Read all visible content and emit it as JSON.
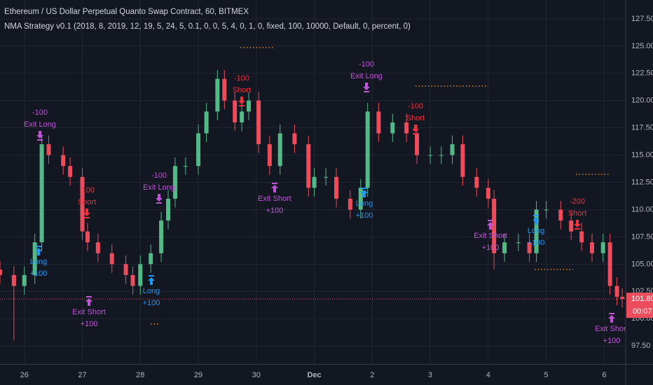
{
  "header": {
    "symbol": "Ethereum / US Dollar Perpetual Quanto Swap Contract, 60, BITMEX",
    "strategy": "NMA Strategy v0.1 (2018, 8, 2019, 12, 19, 5, 24, 5, 0.1, 0, 0, 5, 4, 0, 1, 0, fixed, 100, 10000, Default, 0, percent, 0)"
  },
  "chart_data": {
    "type": "candlestick",
    "up_color": "#53b987",
    "down_color": "#eb4d5c",
    "grid": true,
    "x": [
      25.58,
      25.82,
      26.0,
      26.18,
      26.3,
      26.42,
      26.67,
      26.79,
      27.0,
      27.09,
      27.27,
      27.51,
      27.75,
      27.87,
      28.0,
      28.18,
      28.36,
      28.48,
      28.6,
      28.78,
      29.0,
      29.14,
      29.33,
      29.45,
      29.63,
      29.75,
      29.87,
      30.04,
      30.23,
      30.41,
      30.66,
      30.9,
      31.0,
      31.2,
      31.38,
      31.62,
      31.8,
      31.92,
      32.11,
      32.35,
      32.59,
      32.77,
      33.0,
      33.19,
      33.38,
      33.56,
      33.8,
      34.0,
      34.1,
      34.28,
      34.52,
      34.71,
      34.83,
      35.0,
      35.25,
      35.43,
      35.61,
      35.79,
      35.98,
      36.1,
      36.22,
      36.31
    ],
    "open": [
      104.5,
      104,
      103,
      104,
      107,
      116,
      115,
      114,
      113,
      108,
      107,
      106,
      105,
      104,
      103,
      105,
      106,
      109,
      111,
      114,
      114,
      117,
      119,
      122,
      120,
      118,
      119,
      120,
      116,
      114,
      117,
      116,
      112,
      113,
      113,
      111,
      110,
      112,
      119,
      117,
      118,
      117,
      115,
      115,
      115,
      116,
      113,
      112,
      111,
      106,
      107,
      107,
      106,
      110,
      110,
      109,
      108,
      107,
      106,
      107,
      103,
      102
    ],
    "high": [
      105.3,
      104.8,
      104.8,
      107.8,
      116.8,
      116.8,
      115.8,
      114.8,
      113.8,
      108.8,
      107.8,
      106.8,
      105.8,
      104.8,
      105.8,
      106.8,
      109.8,
      111.8,
      114.8,
      114.8,
      117.8,
      119.8,
      122.8,
      122.8,
      120.8,
      119.8,
      120.8,
      120.8,
      116.8,
      117.8,
      117.8,
      116.8,
      113.8,
      113.8,
      113.8,
      111.8,
      112.8,
      119.8,
      119.8,
      118.8,
      118.8,
      117.8,
      115.8,
      115.8,
      116.8,
      116.8,
      113.8,
      112.8,
      111.8,
      107.8,
      107.8,
      107.8,
      110.8,
      110.8,
      110.8,
      109.8,
      108.8,
      107.8,
      107.8,
      107.8,
      103.8,
      102.8
    ],
    "low": [
      103.2,
      98,
      102.2,
      103.2,
      106.2,
      114.2,
      113.2,
      112.2,
      107.2,
      106.2,
      105.2,
      104.2,
      103.2,
      102.2,
      102.2,
      104.2,
      105.2,
      108.2,
      110.2,
      113.2,
      113.2,
      116.2,
      118.2,
      119.2,
      117.2,
      117.2,
      118.2,
      115.2,
      113.2,
      113.2,
      115.2,
      111.2,
      111.2,
      112.2,
      110.2,
      109.2,
      109.2,
      111.2,
      116.2,
      116.2,
      116.2,
      114.2,
      114.2,
      114.2,
      114.2,
      112.2,
      111.2,
      110.2,
      104.5,
      105.2,
      106.2,
      105.2,
      105.2,
      109.2,
      108.2,
      107.2,
      106.2,
      105.2,
      105.2,
      102.2,
      101.2,
      101.0
    ],
    "close": [
      104,
      103,
      104,
      107,
      116,
      115,
      114,
      113,
      108,
      107,
      106,
      105,
      104,
      103,
      105,
      106,
      109,
      111,
      114,
      114,
      117,
      119,
      122,
      120,
      118,
      119,
      120,
      116,
      114,
      117,
      116,
      112,
      113,
      113,
      111,
      110,
      112,
      119,
      117,
      118,
      117,
      115,
      115,
      115,
      116,
      113,
      112,
      111,
      106,
      107,
      107,
      106,
      110,
      110,
      109,
      108,
      107,
      106,
      107,
      103,
      102,
      101.8
    ],
    "xlim": [
      25.58,
      36.37
    ],
    "xticks": [
      26,
      27,
      28,
      29,
      30,
      {
        "value": 31,
        "label": "Dec"
      },
      {
        "value": 32,
        "label": "2"
      },
      {
        "value": 33,
        "label": "3"
      },
      {
        "value": 34,
        "label": "4"
      },
      {
        "value": 35,
        "label": "5"
      },
      {
        "value": 36,
        "label": "6"
      }
    ],
    "ylim": [
      95.84,
      129.23
    ],
    "yticks": [
      {
        "value": 97.5,
        "label": "97.50"
      },
      {
        "value": 100,
        "label": "100.00"
      },
      {
        "value": 102.5,
        "label": "102.50"
      },
      {
        "value": 105,
        "label": "105.00"
      },
      {
        "value": 107.5,
        "label": "107.50"
      },
      {
        "value": 110,
        "label": "110.00"
      },
      {
        "value": 112.5,
        "label": "112.50"
      },
      {
        "value": 115,
        "label": "115.00"
      },
      {
        "value": 117.5,
        "label": "117.50"
      },
      {
        "value": 120,
        "label": "120.00"
      },
      {
        "value": 122.5,
        "label": "122.50"
      },
      {
        "value": 125,
        "label": "125.00"
      },
      {
        "value": 127.5,
        "label": "127.50"
      }
    ],
    "last_price": {
      "value": 101.8,
      "label": "101.80"
    },
    "countdown": "00:07",
    "signals": [
      {
        "lines": [
          "-100",
          "Exit Long"
        ],
        "color": "#c054d6"
      },
      {
        "lines": [
          "Long",
          "+100"
        ],
        "color": "#2196f3"
      },
      {
        "lines": [
          "-100",
          "Short"
        ],
        "color": "#f0303c"
      },
      {
        "lines": [
          "Exit Short",
          "+100"
        ],
        "color": "#c054d6"
      },
      {
        "lines": [
          "-100",
          "Exit Long"
        ],
        "color": "#c054d6"
      },
      {
        "lines": [
          "Long",
          "+100"
        ],
        "color": "#2196f3"
      },
      {
        "lines": [
          "-100",
          "Short"
        ],
        "color": "#f0303c"
      },
      {
        "lines": [
          "Exit Short",
          "+100"
        ],
        "color": "#c054d6"
      },
      {
        "lines": [
          "-100",
          "Exit Long"
        ],
        "color": "#c054d6"
      },
      {
        "lines": [
          "Long",
          "+100"
        ],
        "color": "#2196f3"
      },
      {
        "lines": [
          "-100",
          "Short"
        ],
        "color": "#f0303c"
      },
      {
        "lines": [
          "Exit Short",
          "+100"
        ],
        "color": "#c054d6"
      },
      {
        "lines": [
          "Long",
          "+100"
        ],
        "color": "#2196f3"
      },
      {
        "lines": [
          "-200",
          "Short"
        ],
        "color": "#f0303c"
      },
      {
        "lines": [
          "Exit Short",
          "+100"
        ],
        "color": "#c054d6"
      }
    ]
  }
}
